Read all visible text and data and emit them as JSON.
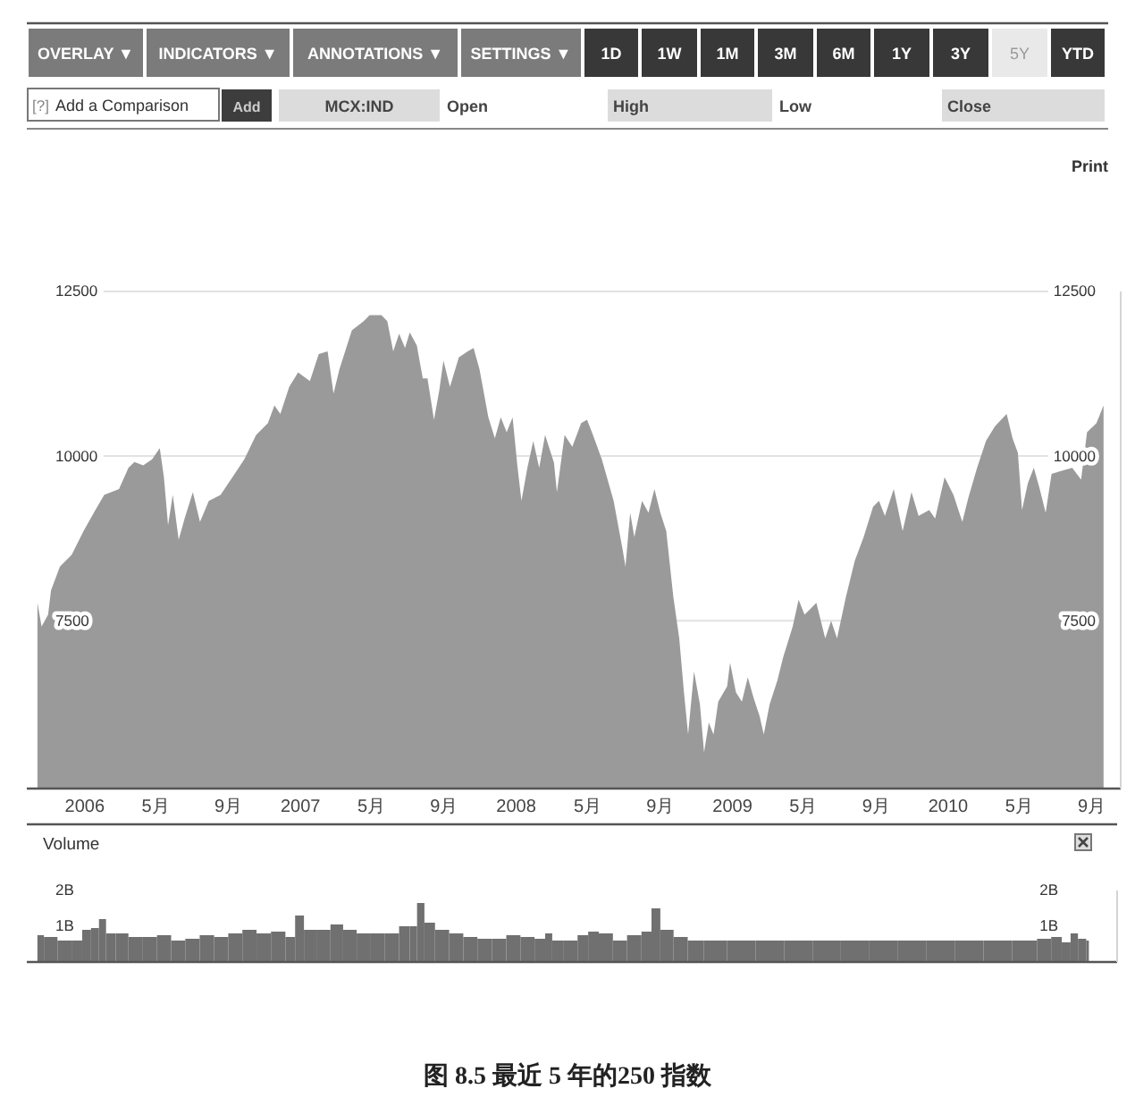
{
  "chart_data": [
    {
      "type": "other",
      "annotations": [
        "OVERLAY ▼",
        "INDICATORS ▼",
        "ANNOTATIONS ▼",
        "SETTINGS ▼",
        "1D",
        "1W",
        "1M",
        "3M",
        "6M",
        "1Y",
        "3Y",
        "5Y",
        "YTD",
        "[?]",
        "Add a Comparison",
        "Add",
        "MCX:IND",
        "Open",
        "High",
        "Low",
        "Close",
        "Print"
      ]
    },
    {
      "type": "area",
      "color": "#9a9a9a",
      "x": [
        "2005-10-13",
        "2005-10-20",
        "2005-10-31",
        "2005-11-05",
        "2005-11-20",
        "2005-12-10",
        "2005-12-30",
        "2006-01-19",
        "2006-02-03",
        "2006-02-28",
        "2006-03-16",
        "2006-03-26",
        "2006-04-10",
        "2006-04-25",
        "2006-05-08",
        "2006-05-15",
        "2006-05-22",
        "2006-05-30",
        "2006-06-09",
        "2006-06-19",
        "2006-07-03",
        "2006-07-15",
        "2006-07-30",
        "2006-08-19",
        "2006-09-08",
        "2006-09-28",
        "2006-10-18",
        "2006-11-07",
        "2006-11-18",
        "2006-11-28",
        "2006-12-13",
        "2006-12-28",
        "2007-01-17",
        "2007-02-01",
        "2007-02-16",
        "2007-02-26",
        "2007-03-08",
        "2007-03-29",
        "2007-04-18",
        "2007-04-28",
        "2007-05-18",
        "2007-05-28",
        "2007-06-07",
        "2007-06-17",
        "2007-06-27",
        "2007-07-05",
        "2007-07-17",
        "2007-07-27",
        "2007-08-04",
        "2007-08-15",
        "2007-08-24",
        "2007-08-31",
        "2007-09-11",
        "2007-09-26",
        "2007-10-11",
        "2007-10-21",
        "2007-10-31",
        "2007-11-15",
        "2007-11-26",
        "2007-12-06",
        "2007-12-16",
        "2007-12-26",
        "2008-01-03",
        "2008-01-10",
        "2008-01-20",
        "2008-01-30",
        "2008-02-09",
        "2008-02-19",
        "2008-03-05",
        "2008-03-10",
        "2008-03-23",
        "2008-04-05",
        "2008-04-20",
        "2008-04-30",
        "2008-05-10",
        "2008-05-25",
        "2008-06-14",
        "2008-06-29",
        "2008-07-04",
        "2008-07-12",
        "2008-07-19",
        "2008-08-01",
        "2008-08-12",
        "2008-08-22",
        "2008-09-01",
        "2008-09-11",
        "2008-09-23",
        "2008-10-03",
        "2008-10-11",
        "2008-10-18",
        "2008-10-28",
        "2008-11-07",
        "2008-11-14",
        "2008-11-22",
        "2008-11-30",
        "2008-12-08",
        "2008-12-23",
        "2008-12-28",
        "2009-01-07",
        "2009-01-17",
        "2009-01-27",
        "2009-02-06",
        "2009-02-16",
        "2009-02-23",
        "2009-03-05",
        "2009-03-18",
        "2009-03-28",
        "2009-04-13",
        "2009-04-23",
        "2009-05-03",
        "2009-05-13",
        "2009-05-23",
        "2009-06-07",
        "2009-06-17",
        "2009-06-27",
        "2009-07-12",
        "2009-07-27",
        "2009-08-11",
        "2009-08-27",
        "2009-09-06",
        "2009-09-16",
        "2009-10-01",
        "2009-10-16",
        "2009-10-31",
        "2009-11-12",
        "2009-11-30",
        "2009-12-10",
        "2009-12-26",
        "2010-01-10",
        "2010-01-25",
        "2010-02-04",
        "2010-02-19",
        "2010-03-06",
        "2010-03-21",
        "2010-04-10",
        "2010-04-20",
        "2010-04-29",
        "2010-05-06",
        "2010-05-16",
        "2010-05-26",
        "2010-06-05",
        "2010-06-15",
        "2010-06-25",
        "2010-07-10",
        "2010-07-30",
        "2010-08-14",
        "2010-08-24",
        "2010-09-09",
        "2010-09-21"
      ],
      "values": [
        7770,
        7410,
        7590,
        7960,
        8320,
        8500,
        8860,
        9180,
        9410,
        9500,
        9820,
        9910,
        9860,
        9950,
        10120,
        9680,
        8950,
        9410,
        8730,
        9050,
        9450,
        9000,
        9320,
        9410,
        9680,
        9950,
        10320,
        10500,
        10770,
        10640,
        11050,
        11270,
        11140,
        11550,
        11590,
        10950,
        11320,
        11910,
        12050,
        12140,
        12140,
        12050,
        11590,
        11860,
        11640,
        11880,
        11680,
        11180,
        11180,
        10550,
        11000,
        11450,
        11050,
        11500,
        11590,
        11640,
        11320,
        10590,
        10270,
        10590,
        10360,
        10590,
        9860,
        9320,
        9820,
        10230,
        9820,
        10320,
        9900,
        9450,
        10320,
        10140,
        10500,
        10550,
        10320,
        9950,
        9320,
        8590,
        8320,
        9140,
        8770,
        9320,
        9140,
        9500,
        9140,
        8860,
        7860,
        7230,
        6410,
        5770,
        6730,
        6230,
        5500,
        5950,
        5770,
        6270,
        6500,
        6860,
        6410,
        6270,
        6640,
        6320,
        6050,
        5770,
        6230,
        6590,
        6950,
        7410,
        7820,
        7590,
        7680,
        7770,
        7230,
        7500,
        7230,
        7860,
        8410,
        8770,
        9230,
        9320,
        9090,
        9500,
        8860,
        9450,
        9090,
        9180,
        9050,
        9680,
        9410,
        9000,
        9360,
        9820,
        10230,
        10450,
        10640,
        10270,
        10050,
        9180,
        9590,
        9820,
        9500,
        9140,
        9730,
        9770,
        9820,
        9640,
        10360,
        10500,
        10770
      ],
      "xlim": [
        "2005-09-25",
        "2010-10-20"
      ],
      "xticks": [
        {
          "value": "2006-01-01",
          "label": "2006"
        },
        {
          "value": "2006-05-01",
          "label": "5月"
        },
        {
          "value": "2006-09-01",
          "label": "9月"
        },
        {
          "value": "2007-01-01",
          "label": "2007"
        },
        {
          "value": "2007-05-01",
          "label": "5月"
        },
        {
          "value": "2007-09-01",
          "label": "9月"
        },
        {
          "value": "2008-01-01",
          "label": "2008"
        },
        {
          "value": "2008-05-01",
          "label": "5月"
        },
        {
          "value": "2008-09-01",
          "label": "9月"
        },
        {
          "value": "2009-01-01",
          "label": "2009"
        },
        {
          "value": "2009-05-01",
          "label": "5月"
        },
        {
          "value": "2009-09-01",
          "label": "9月"
        },
        {
          "value": "2010-01-01",
          "label": "2010"
        },
        {
          "value": "2010-05-01",
          "label": "5月"
        },
        {
          "value": "2010-09-01",
          "label": "9月"
        }
      ],
      "ylim": [
        4950,
        12500
      ],
      "yticks": [
        7500,
        10000,
        12500
      ],
      "y2lim": [
        4950,
        12500
      ],
      "y2ticks": [
        7500,
        10000,
        12500
      ],
      "grid": "y",
      "annotations": [
        "图 8.5 最近 5 年的250 指数"
      ]
    },
    {
      "type": "bar",
      "title": "Volume",
      "color": "#707070",
      "x": [
        "2005-10-13",
        "2005-11-04",
        "2005-11-28",
        "2005-12-22",
        "2006-01-03",
        "2006-01-21",
        "2006-01-30",
        "2006-02-14",
        "2006-03-04",
        "2006-03-29",
        "2006-04-22",
        "2006-05-16",
        "2006-06-09",
        "2006-07-03",
        "2006-07-28",
        "2006-08-21",
        "2006-09-14",
        "2006-10-08",
        "2006-11-01",
        "2006-11-26",
        "2006-12-20",
        "2006-12-29",
        "2007-01-19",
        "2007-02-12",
        "2007-03-05",
        "2007-03-27",
        "2007-04-20",
        "2007-05-14",
        "2007-06-07",
        "2007-07-01",
        "2007-07-13",
        "2007-07-26",
        "2007-08-07",
        "2007-08-31",
        "2007-09-24",
        "2007-10-18",
        "2007-11-11",
        "2007-12-06",
        "2007-12-30",
        "2008-01-23",
        "2008-02-16",
        "2008-02-28",
        "2008-03-11",
        "2008-04-05",
        "2008-04-29",
        "2008-05-11",
        "2008-06-04",
        "2008-06-28",
        "2008-07-22",
        "2008-08-16",
        "2008-08-25",
        "2008-09-15",
        "2008-10-09",
        "2008-11-02",
        "2008-12-02",
        "2009-01-20",
        "2009-03-09",
        "2009-04-27",
        "2009-06-14",
        "2009-08-01",
        "2009-09-19",
        "2009-11-06",
        "2009-12-25",
        "2010-02-11",
        "2010-03-31",
        "2010-05-19",
        "2010-06-24",
        "2010-07-06",
        "2010-07-30",
        "2010-08-05",
        "2010-08-24",
        "2010-09-02"
      ],
      "values": [
        0.75,
        0.7,
        0.6,
        0.6,
        0.9,
        0.95,
        1.2,
        0.8,
        0.8,
        0.7,
        0.7,
        0.75,
        0.6,
        0.65,
        0.75,
        0.7,
        0.8,
        0.9,
        0.8,
        0.85,
        0.7,
        1.3,
        0.9,
        0.9,
        1.05,
        0.9,
        0.8,
        0.8,
        0.8,
        1.0,
        1.0,
        1.65,
        1.1,
        0.9,
        0.8,
        0.7,
        0.65,
        0.65,
        0.75,
        0.7,
        0.65,
        0.8,
        0.6,
        0.6,
        0.75,
        0.85,
        0.8,
        0.6,
        0.75,
        0.85,
        1.5,
        0.9,
        0.7,
        0.6,
        0.6,
        0.6,
        0.6,
        0.6,
        0.6,
        0.6,
        0.6,
        0.6,
        0.6,
        0.6,
        0.6,
        0.6,
        0.65,
        0.7,
        0.55,
        0.8,
        0.65,
        0.6
      ],
      "xlim": [
        "2005-09-25",
        "2010-10-20"
      ],
      "ylim": [
        0,
        2
      ],
      "yticks": [
        {
          "value": 1,
          "label": "1B"
        },
        {
          "value": 2,
          "label": "2B"
        }
      ],
      "y2lim": [
        0,
        2
      ],
      "y2ticks": [
        {
          "value": 1,
          "label": "1B"
        },
        {
          "value": 2,
          "label": "2B"
        }
      ],
      "tick_labels": "y"
    }
  ]
}
